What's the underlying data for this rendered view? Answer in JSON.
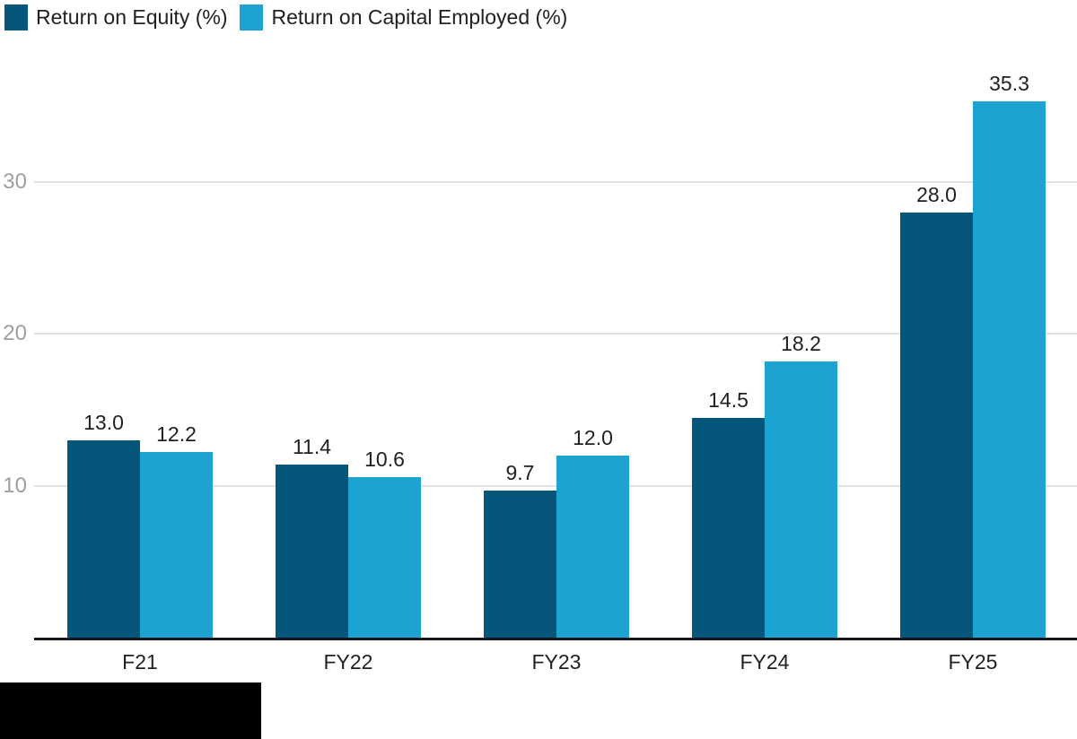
{
  "chart_data": {
    "type": "bar",
    "title": "",
    "xlabel": "",
    "ylabel": "",
    "categories": [
      "F21",
      "FY22",
      "FY23",
      "FY24",
      "FY25"
    ],
    "series": [
      {
        "name": "Return on Equity (%)",
        "color": "#06557B",
        "values": [
          13.0,
          11.4,
          9.7,
          14.5,
          28.0
        ]
      },
      {
        "name": "Return on Capital Employed (%)",
        "color": "#1CA3CF",
        "values": [
          12.2,
          10.6,
          12.0,
          18.2,
          35.3
        ]
      }
    ],
    "value_labels": [
      "13.0",
      "11.4",
      "9.7",
      "14.5",
      "28.0",
      "12.2",
      "10.6",
      "12.0",
      "18.2",
      "35.3"
    ],
    "value_label_decimals": 1,
    "y_ticks": [
      10,
      20,
      30
    ],
    "ylim": [
      0,
      42
    ],
    "grid": true,
    "legend_position": "top-left"
  },
  "legend": {
    "items": [
      {
        "label": "Return on Equity (%)",
        "color": "#06557B"
      },
      {
        "label": "Return on Capital Employed (%)",
        "color": "#1CA3CF"
      }
    ]
  },
  "colors": {
    "axis_line": "#15151E",
    "gridline": "#E2E2E2",
    "tick_label": "#9E9E9E",
    "value_label": "#212121",
    "category_label": "#212121",
    "background": "#FFFFFF",
    "redaction_block": "#000000"
  }
}
